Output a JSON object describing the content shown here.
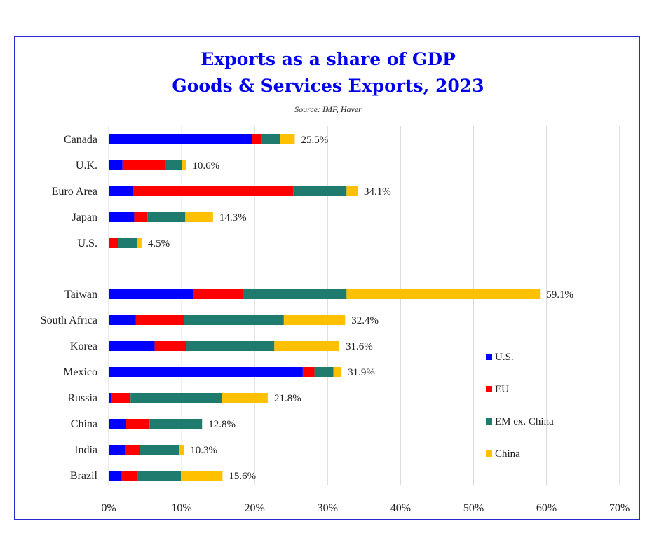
{
  "chart_data": {
    "type": "bar",
    "orientation": "horizontal",
    "stacked": true,
    "title_line1": "Exports as a share of GDP",
    "title_line2": "Goods & Services Exports, 2023",
    "source": "Source: IMF, Haver",
    "xlim": [
      0,
      70
    ],
    "x_ticks": [
      "0%",
      "10%",
      "20%",
      "30%",
      "40%",
      "50%",
      "60%",
      "70%"
    ],
    "grid": true,
    "legend_position": "right",
    "categories": [
      "Canada",
      "U.K.",
      "Euro Area",
      "Japan",
      "U.S.",
      "Taiwan",
      "South Africa",
      "Korea",
      "Mexico",
      "Russia",
      "China",
      "India",
      "Brazil"
    ],
    "group_break_after": "U.S.",
    "series": [
      {
        "name": "U.S.",
        "color": "#0000ff",
        "values": [
          19.6,
          1.9,
          3.3,
          3.5,
          0.0,
          11.6,
          3.7,
          6.3,
          26.6,
          0.3,
          2.4,
          2.3,
          1.8
        ]
      },
      {
        "name": "EU",
        "color": "#ff0000",
        "values": [
          1.4,
          5.8,
          22.0,
          1.8,
          1.3,
          6.8,
          6.6,
          4.3,
          1.6,
          2.7,
          3.2,
          2.0,
          2.2
        ]
      },
      {
        "name": "EM ex. China",
        "color": "#1e7b6e",
        "values": [
          2.5,
          2.3,
          7.3,
          5.2,
          2.6,
          14.2,
          13.7,
          12.1,
          2.6,
          12.5,
          7.2,
          5.4,
          5.9
        ]
      },
      {
        "name": "China",
        "color": "#ffc000",
        "values": [
          2.0,
          0.6,
          1.5,
          3.8,
          0.6,
          26.5,
          8.4,
          8.9,
          1.1,
          6.3,
          0.0,
          0.6,
          5.7
        ]
      }
    ],
    "totals": [
      "25.5%",
      "10.6%",
      "34.1%",
      "14.3%",
      "4.5%",
      "59.1%",
      "32.4%",
      "31.6%",
      "31.9%",
      "21.8%",
      "12.8%",
      "10.3%",
      "15.6%"
    ]
  }
}
